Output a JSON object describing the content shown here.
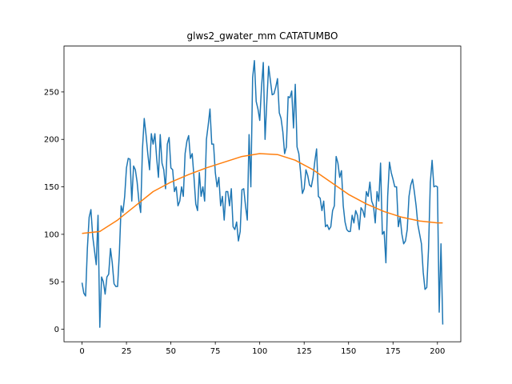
{
  "chart_data": {
    "type": "line",
    "title": "glws2_gwater_mm CATATUMBO",
    "series": [
      {
        "color": "#1f77b4",
        "x": [
          0,
          1,
          2,
          3,
          4,
          5,
          6,
          7,
          8,
          9,
          10,
          11,
          12,
          13,
          14,
          15,
          16,
          17,
          18,
          19,
          20,
          21,
          22,
          23,
          24,
          25,
          26,
          27,
          28,
          29,
          30,
          31,
          32,
          33,
          34,
          35,
          36,
          37,
          38,
          39,
          40,
          41,
          42,
          43,
          44,
          45,
          46,
          47,
          48,
          49,
          50,
          51,
          52,
          53,
          54,
          55,
          56,
          57,
          58,
          59,
          60,
          61,
          62,
          63,
          64,
          65,
          66,
          67,
          68,
          69,
          70,
          71,
          72,
          73,
          74,
          75,
          76,
          77,
          78,
          79,
          80,
          81,
          82,
          83,
          84,
          85,
          86,
          87,
          88,
          89,
          90,
          91,
          92,
          93,
          94,
          95,
          96,
          97,
          98,
          99,
          100,
          101,
          102,
          103,
          104,
          105,
          106,
          107,
          108,
          109,
          110,
          111,
          112,
          113,
          114,
          115,
          116,
          117,
          118,
          119,
          120,
          121,
          122,
          123,
          124,
          125,
          126,
          127,
          128,
          129,
          130,
          131,
          132,
          133,
          134,
          135,
          136,
          137,
          138,
          139,
          140,
          141,
          142,
          143,
          144,
          145,
          146,
          147,
          148,
          149,
          150,
          151,
          152,
          153,
          154,
          155,
          156,
          157,
          158,
          159,
          160,
          161,
          162,
          163,
          164,
          165,
          166,
          167,
          168,
          169,
          170,
          171,
          172,
          173,
          174,
          175,
          176,
          177,
          178,
          179,
          180,
          181,
          182,
          183,
          184,
          185,
          186,
          187,
          188,
          189,
          190,
          191,
          192,
          193,
          194,
          195,
          196,
          197,
          198,
          199,
          200,
          201,
          202,
          203
        ],
        "values": [
          49,
          38,
          35,
          85,
          118,
          126,
          98,
          83,
          68,
          120,
          2,
          55,
          50,
          37,
          55,
          58,
          85,
          70,
          48,
          45,
          45,
          80,
          130,
          123,
          140,
          170,
          180,
          179,
          135,
          172,
          168,
          155,
          135,
          123,
          190,
          222,
          205,
          185,
          168,
          206,
          195,
          206,
          180,
          160,
          205,
          175,
          168,
          148,
          195,
          202,
          170,
          168,
          145,
          150,
          130,
          135,
          150,
          140,
          185,
          198,
          204,
          180,
          185,
          160,
          132,
          125,
          165,
          140,
          150,
          135,
          200,
          215,
          232,
          195,
          195,
          165,
          150,
          160,
          130,
          140,
          115,
          145,
          145,
          130,
          148,
          108,
          105,
          113,
          93,
          103,
          147,
          148,
          130,
          115,
          205,
          150,
          265,
          283,
          240,
          232,
          220,
          255,
          281,
          200,
          240,
          277,
          262,
          247,
          248,
          255,
          264,
          228,
          222,
          208,
          185,
          192,
          245,
          244,
          251,
          212,
          258,
          192,
          185,
          165,
          143,
          148,
          168,
          162,
          152,
          150,
          160,
          177,
          190,
          140,
          138,
          125,
          135,
          108,
          110,
          105,
          108,
          125,
          130,
          182,
          175,
          160,
          167,
          130,
          113,
          105,
          103,
          103,
          120,
          112,
          125,
          120,
          105,
          128,
          125,
          118,
          145,
          140,
          155,
          135,
          130,
          112,
          145,
          135,
          175,
          100,
          103,
          70,
          140,
          176,
          165,
          158,
          150,
          150,
          108,
          118,
          100,
          90,
          93,
          105,
          140,
          152,
          158,
          145,
          130,
          110,
          100,
          90,
          60,
          42,
          44,
          85,
          155,
          178,
          150,
          151,
          150,
          18,
          90,
          5
        ]
      },
      {
        "color": "#ff7f0e",
        "x": [
          0,
          10,
          20,
          30,
          40,
          50,
          60,
          70,
          80,
          90,
          100,
          110,
          120,
          130,
          140,
          150,
          160,
          170,
          180,
          190,
          200,
          203
        ],
        "values": [
          101,
          103,
          115,
          130,
          145,
          155,
          163,
          170,
          176,
          182,
          185,
          184,
          178,
          168,
          155,
          142,
          132,
          124,
          118,
          114,
          112,
          112
        ]
      }
    ],
    "xlim": [
      -10.15,
      213.15
    ],
    "xticks": [
      0,
      25,
      50,
      75,
      100,
      125,
      150,
      175,
      200
    ],
    "ylim": [
      -13.2,
      298.3
    ],
    "yticks": [
      0,
      50,
      100,
      150,
      200,
      250
    ]
  }
}
